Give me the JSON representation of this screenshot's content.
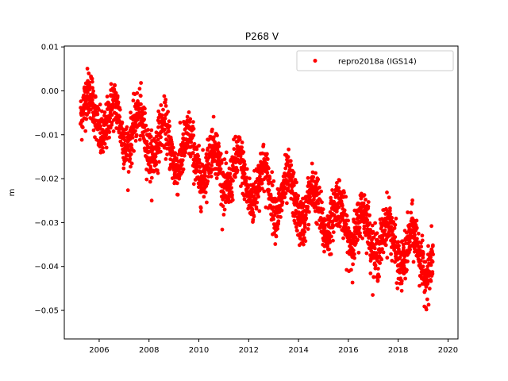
{
  "chart_data": {
    "type": "scatter",
    "title": "P268 V",
    "xlabel": "",
    "ylabel": "m",
    "xlim": [
      2004.6,
      2020.4
    ],
    "ylim": [
      -0.0565,
      0.0102
    ],
    "xticks": [
      2006,
      2008,
      2010,
      2012,
      2014,
      2016,
      2018,
      2020
    ],
    "xtick_labels": [
      "2006",
      "2008",
      "2010",
      "2012",
      "2014",
      "2016",
      "2018",
      "2020"
    ],
    "yticks": [
      0.01,
      0.0,
      -0.01,
      -0.02,
      -0.03,
      -0.04,
      -0.05
    ],
    "ytick_labels": [
      "0.01",
      "0.00",
      "−0.01",
      "−0.02",
      "−0.03",
      "−0.04",
      "−0.05"
    ],
    "grid": false,
    "legend_position": "top-right",
    "series": [
      {
        "name": "repro2018a (IGS14)",
        "color": "#ff0000",
        "marker": "circle",
        "x_range": [
          2005.25,
          2019.4
        ],
        "trend": {
          "intercept_at_start": -0.004,
          "slope_per_year": -0.00245
        },
        "seasonal_amplitude": 0.0045,
        "noise_sd": 0.0028,
        "sample_points": [
          {
            "x": 2005.3,
            "y": -0.004
          },
          {
            "x": 2006.0,
            "y": -0.006
          },
          {
            "x": 2007.0,
            "y": -0.008
          },
          {
            "x": 2008.0,
            "y": -0.014
          },
          {
            "x": 2009.0,
            "y": -0.017
          },
          {
            "x": 2010.0,
            "y": -0.02
          },
          {
            "x": 2011.0,
            "y": -0.022
          },
          {
            "x": 2012.0,
            "y": -0.02
          },
          {
            "x": 2013.0,
            "y": -0.026
          },
          {
            "x": 2014.0,
            "y": -0.026
          },
          {
            "x": 2015.0,
            "y": -0.029
          },
          {
            "x": 2016.0,
            "y": -0.036
          },
          {
            "x": 2017.0,
            "y": -0.038
          },
          {
            "x": 2018.0,
            "y": -0.037
          },
          {
            "x": 2019.0,
            "y": -0.037
          }
        ]
      }
    ]
  }
}
